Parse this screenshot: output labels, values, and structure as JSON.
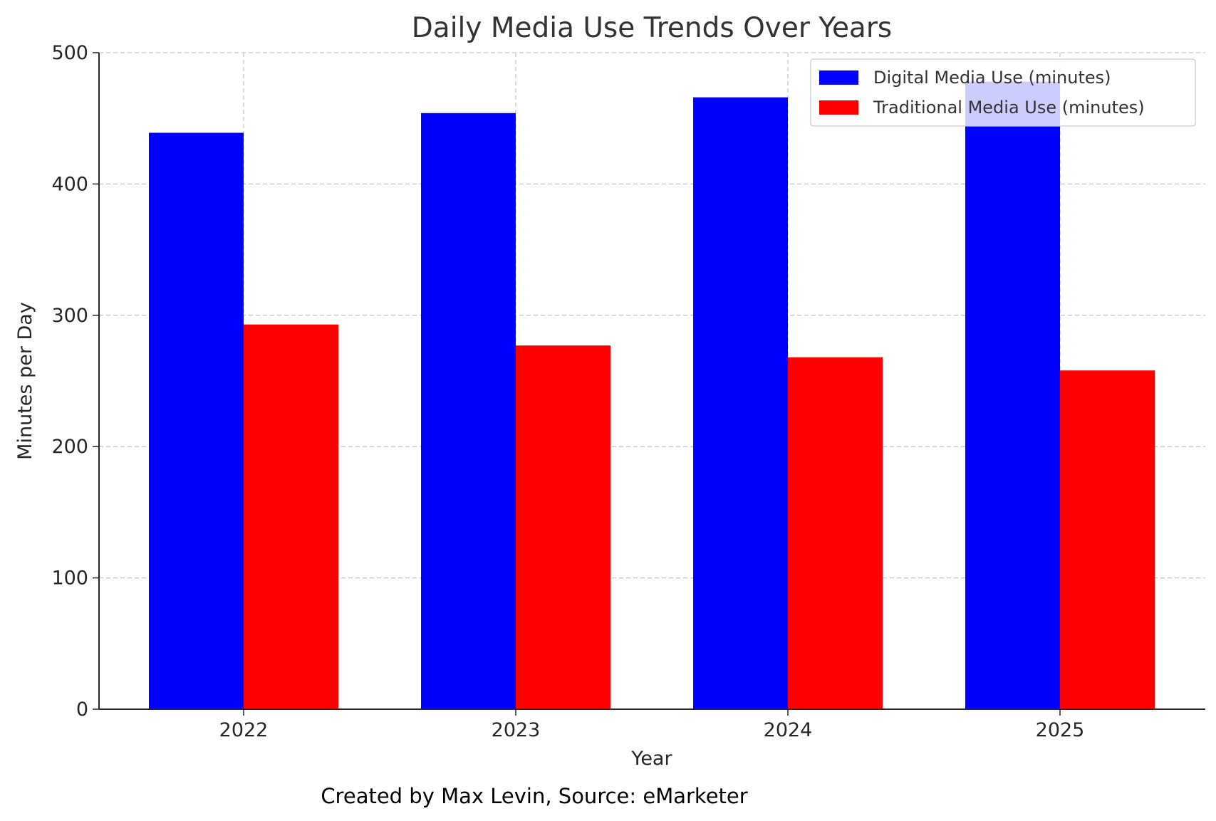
{
  "chart_data": {
    "type": "bar",
    "title": "Daily Media Use Trends Over Years",
    "xlabel": "Year",
    "ylabel": "Minutes per Day",
    "caption": "Created by Max Levin, Source: eMarketer",
    "categories": [
      "2022",
      "2023",
      "2024",
      "2025"
    ],
    "series": [
      {
        "name": "Digital Media Use (minutes)",
        "color": "#0000ff",
        "values": [
          439,
          454,
          466,
          478
        ]
      },
      {
        "name": "Traditional Media Use (minutes)",
        "color": "#ff0000",
        "values": [
          293,
          277,
          268,
          258
        ]
      }
    ],
    "ylim": [
      0,
      500
    ],
    "yticks": [
      "0",
      "100",
      "200",
      "300",
      "400",
      "500"
    ],
    "grid": true,
    "legend_position": "top-right"
  }
}
